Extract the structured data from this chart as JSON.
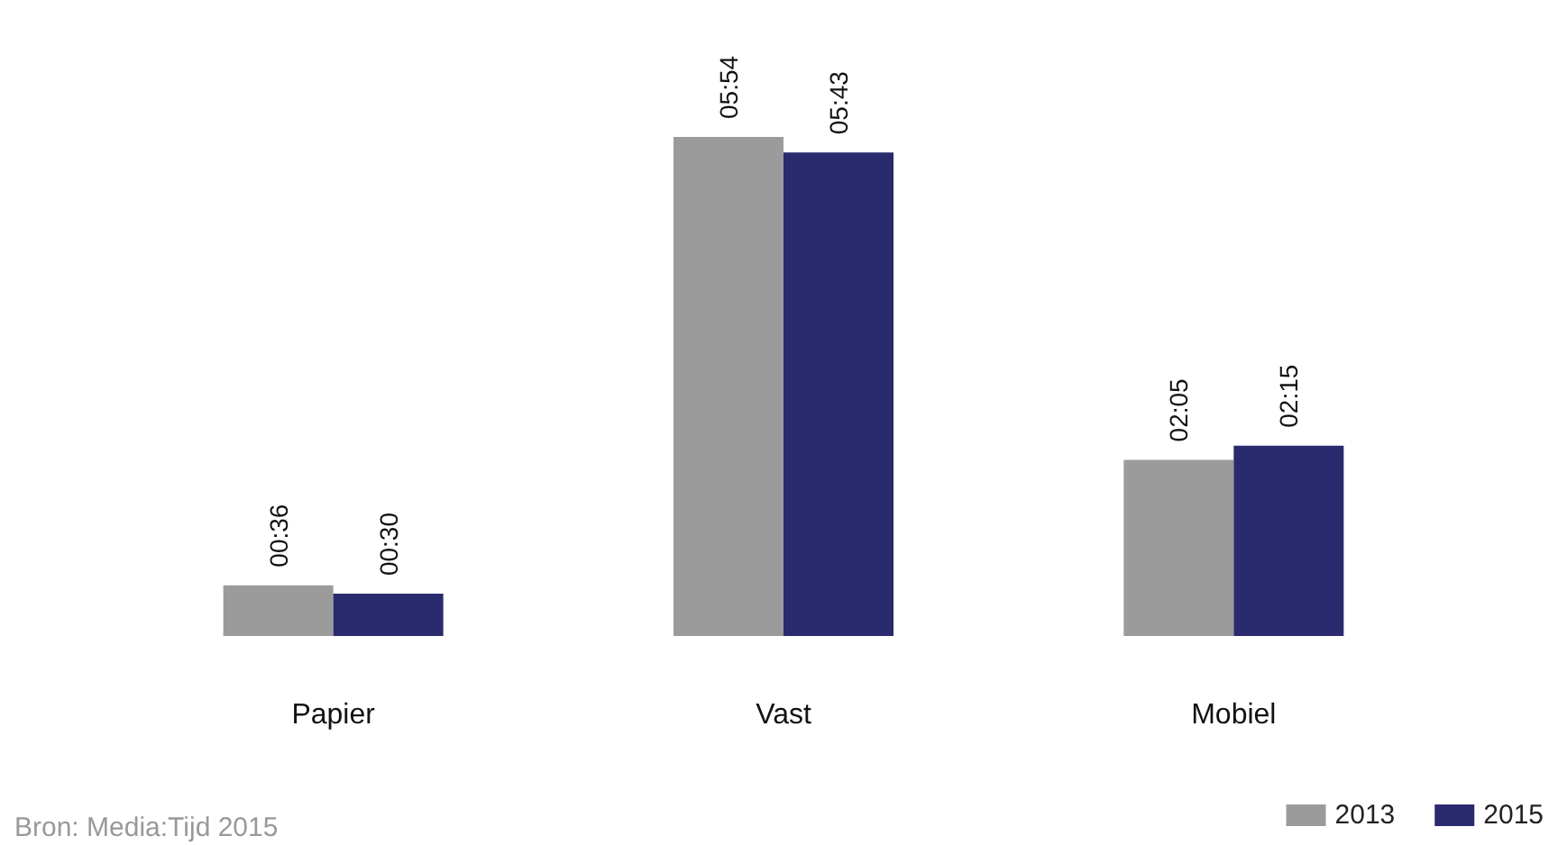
{
  "chart_data": {
    "type": "bar",
    "categories": [
      "Papier",
      "Vast",
      "Mobiel"
    ],
    "series": [
      {
        "name": "2013",
        "color": "#9b9b9b",
        "values": [
          36,
          354,
          125
        ],
        "value_labels": [
          "00:36",
          "05:54",
          "02:05"
        ]
      },
      {
        "name": "2015",
        "color": "#2a2a6e",
        "values": [
          30,
          343,
          135
        ],
        "value_labels": [
          "00:30",
          "05:43",
          "02:15"
        ]
      }
    ],
    "legend": "bottom right",
    "tick_labels": "x",
    "annotations": [
      "Bron: Media:Tijd 2015"
    ]
  }
}
